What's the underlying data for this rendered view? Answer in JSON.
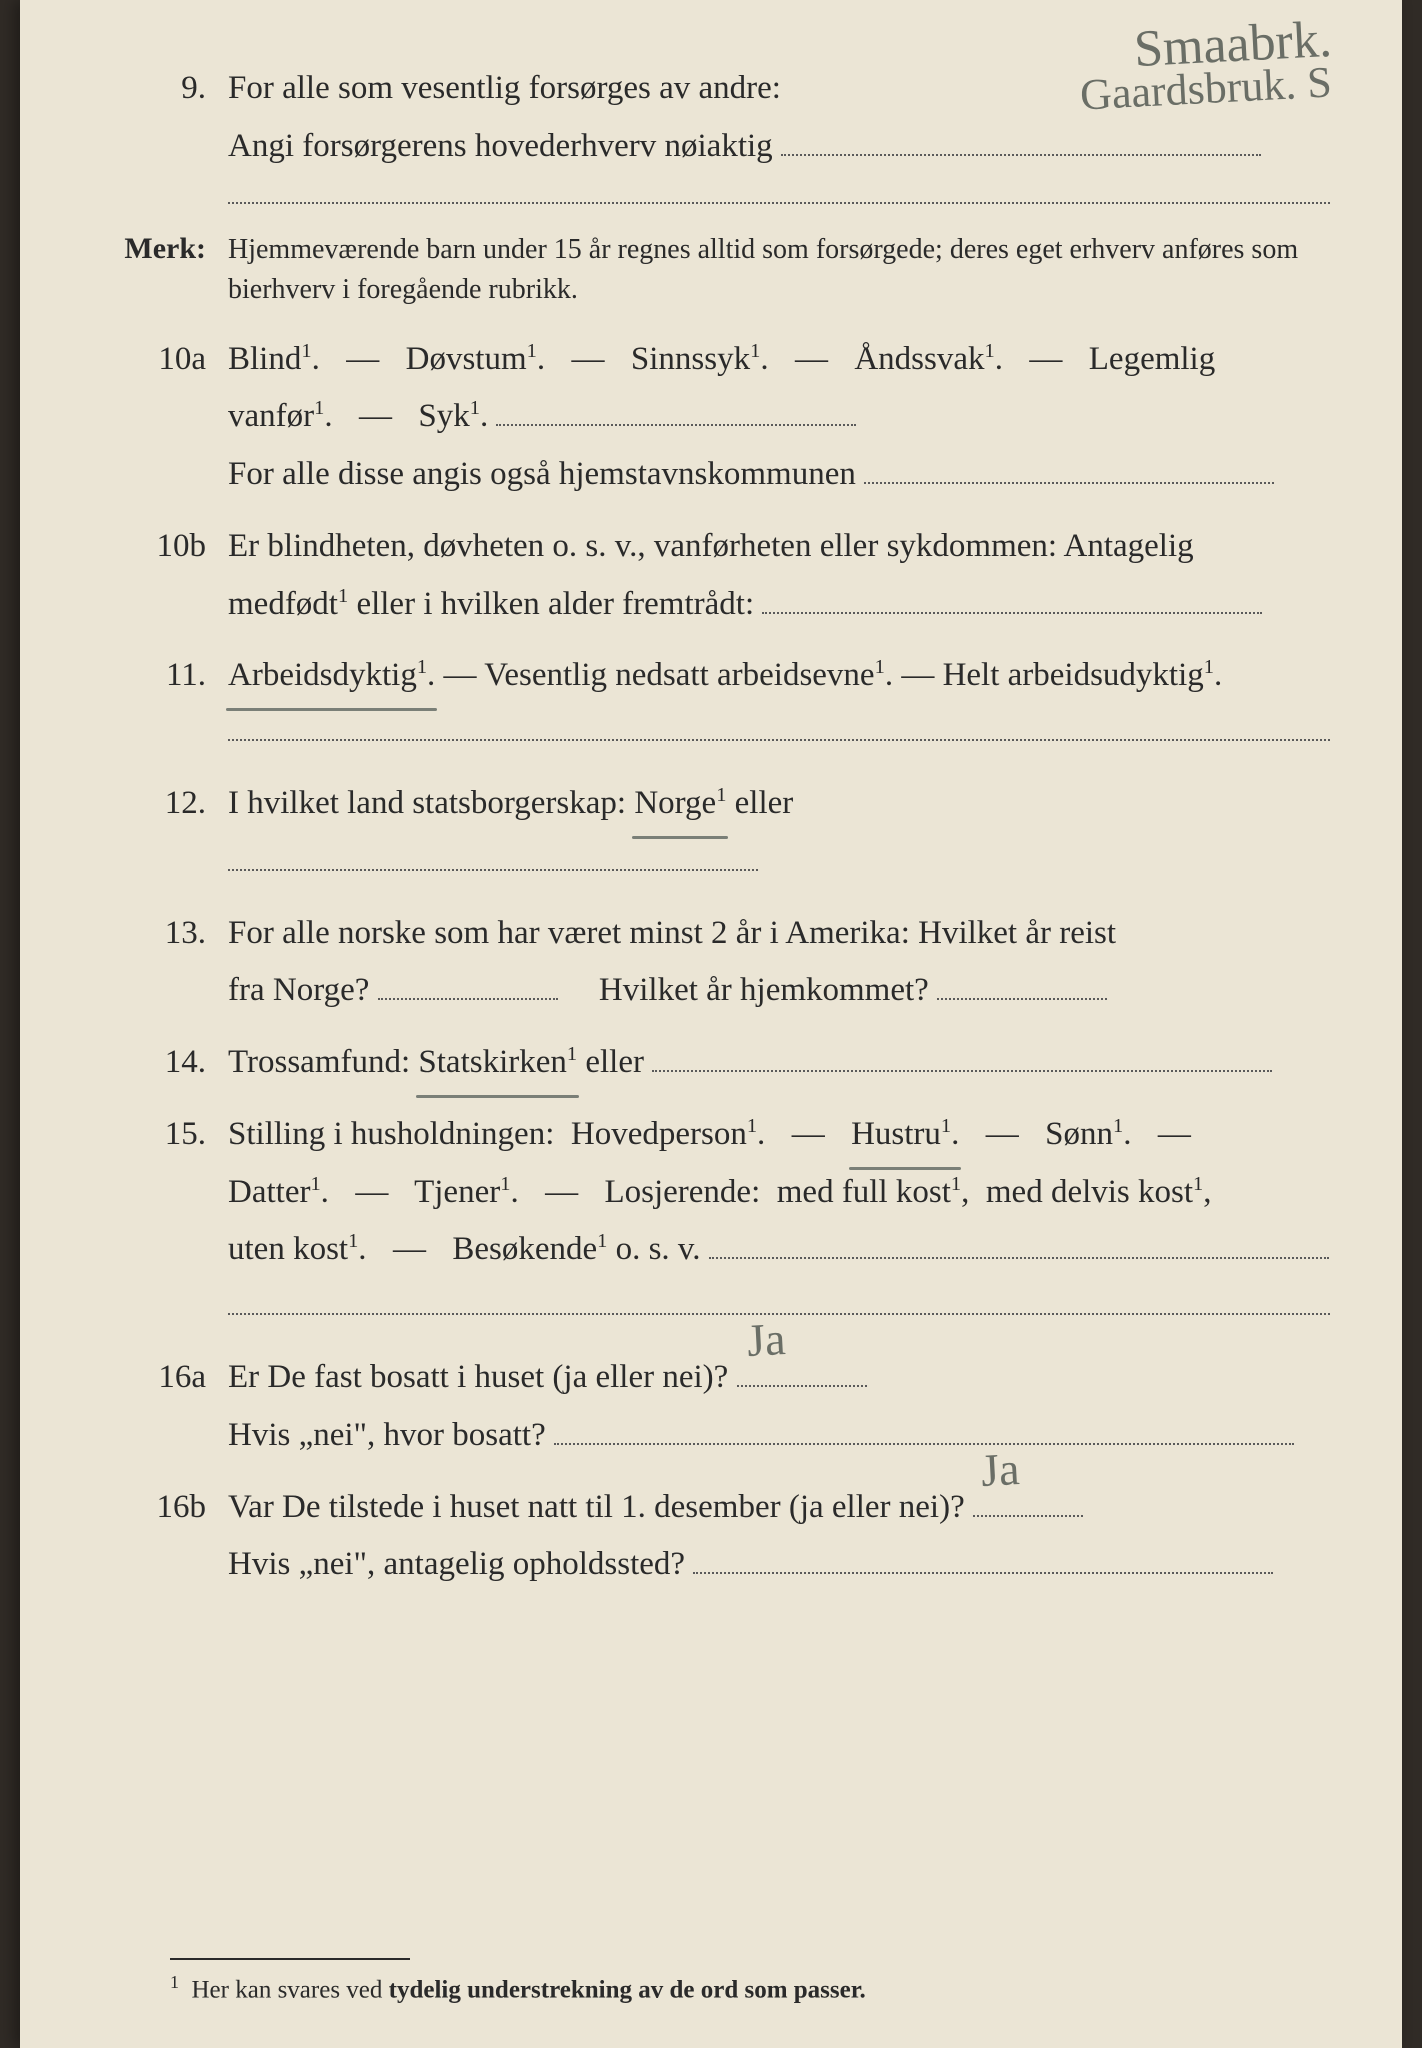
{
  "handwriting": {
    "top_line1": "Smaabrk.",
    "top_line2": "Gaardsbruk. S",
    "q11_underline_target": "Arbeidsdyktig",
    "q12_underline_target": "Norge",
    "q14_underline_target": "Statskirken",
    "q15_underline_target": "Hustru",
    "q16a_answer": "Ja",
    "q16b_answer": "Ja"
  },
  "q9": {
    "num": "9.",
    "line1": "For alle som vesentlig forsørges av andre:",
    "line2": "Angi forsørgerens hovederhverv nøiaktig"
  },
  "merk": {
    "label": "Merk:",
    "text": "Hjemmeværende barn under 15 år regnes alltid som forsørgede; deres eget erhverv anføres som bierhverv i foregående rubrikk."
  },
  "q10a": {
    "num": "10a",
    "line1_a": "Blind¹.",
    "line1_b": "Døvstum¹.",
    "line1_c": "Sinnssyk¹.",
    "line1_d": "Åndssvak¹.",
    "line1_e": "Legemlig",
    "line2_a": "vanfør¹.",
    "line2_b": "Syk¹.",
    "line3": "For alle disse angis også hjemstavnskommunen"
  },
  "q10b": {
    "num": "10b",
    "line1": "Er blindheten, døvheten o. s. v., vanførheten eller sykdommen: Antagelig",
    "line2": "medfødt¹ eller i hvilken alder fremtrådt:"
  },
  "q11": {
    "num": "11.",
    "a": "Arbeidsdyktig¹.",
    "b": "Vesentlig nedsatt arbeidsevne¹.",
    "c": "Helt arbeidsudyktig¹."
  },
  "q12": {
    "num": "12.",
    "pre": "I hvilket land statsborgerskap:",
    "opt": "Norge¹",
    "post": "eller"
  },
  "q13": {
    "num": "13.",
    "line1": "For alle norske som har været minst 2 år i Amerika: Hvilket år reist",
    "line2a": "fra Norge?",
    "line2b": "Hvilket år hjemkommet?"
  },
  "q14": {
    "num": "14.",
    "pre": "Trossamfund:",
    "opt": "Statskirken¹",
    "post": "eller"
  },
  "q15": {
    "num": "15.",
    "line1_pre": "Stilling i husholdningen:",
    "a": "Hovedperson¹.",
    "b": "Hustru¹.",
    "c": "Sønn¹.",
    "line2_a": "Datter¹.",
    "line2_b": "Tjener¹.",
    "line2_c": "Losjerende:",
    "line2_d": "med full kost¹,",
    "line2_e": "med delvis kost¹,",
    "line3_a": "uten kost¹.",
    "line3_b": "Besøkende¹ o. s. v."
  },
  "q16a": {
    "num": "16a",
    "line1": "Er De fast bosatt i huset (ja eller nei)?",
    "line2": "Hvis „nei\", hvor bosatt?"
  },
  "q16b": {
    "num": "16b",
    "line1": "Var De tilstede i huset natt til 1. desember (ja eller nei)?",
    "line2": "Hvis „nei\", antagelig opholdssted?"
  },
  "footnote": {
    "marker": "1",
    "text_a": "Her kan svares ved ",
    "text_b": "tydelig understrekning av de ord som passer."
  },
  "colors": {
    "paper": "#ebe5d5",
    "ink": "#2a2a2a",
    "pencil": "#6a6e66",
    "border": "#302b26"
  }
}
